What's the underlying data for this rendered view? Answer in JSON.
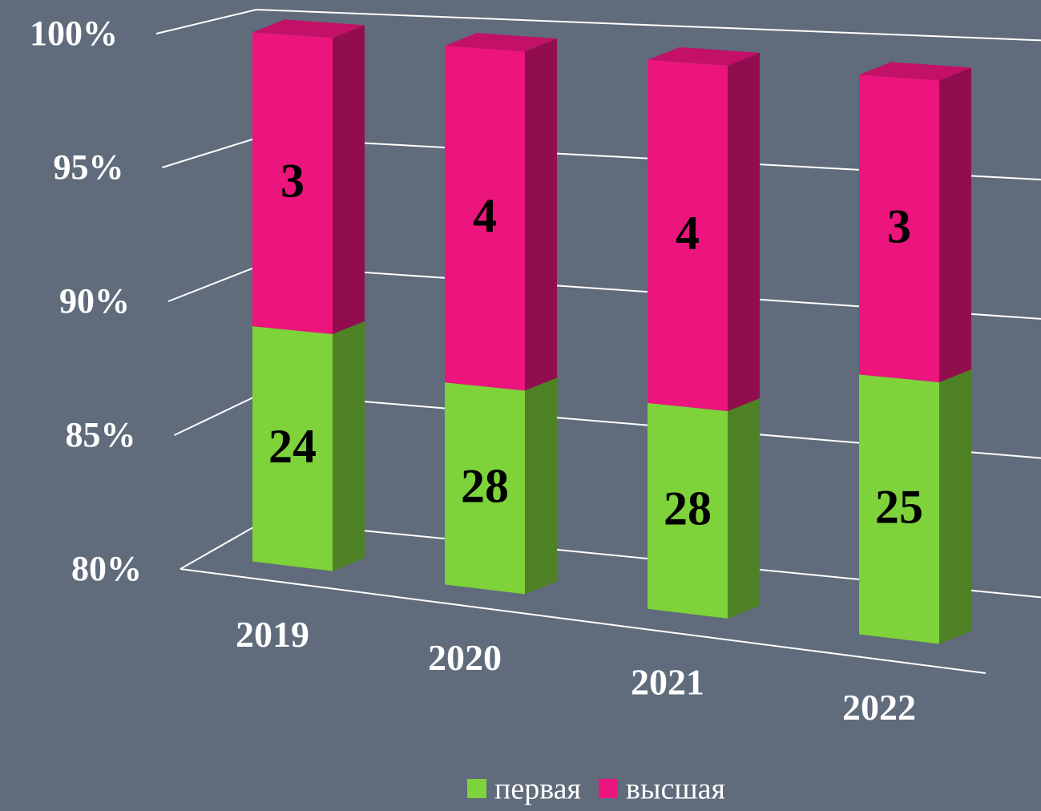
{
  "chart_data": {
    "type": "bar",
    "stacked": "percent",
    "categories": [
      "2019",
      "2020",
      "2021",
      "2022"
    ],
    "series": [
      {
        "name": "первая",
        "color": "#7ed23a",
        "values": [
          24,
          28,
          28,
          25
        ]
      },
      {
        "name": "высшая",
        "color": "#ec157d",
        "values": [
          3,
          4,
          4,
          3
        ]
      }
    ],
    "ylim": [
      80,
      100
    ],
    "yticks": [
      {
        "value": 80,
        "label": "80%"
      },
      {
        "value": 85,
        "label": "85%"
      },
      {
        "value": 90,
        "label": "90%"
      },
      {
        "value": 95,
        "label": "95%"
      },
      {
        "value": 100,
        "label": "100%"
      }
    ],
    "grid": true,
    "legend": "bottom"
  }
}
